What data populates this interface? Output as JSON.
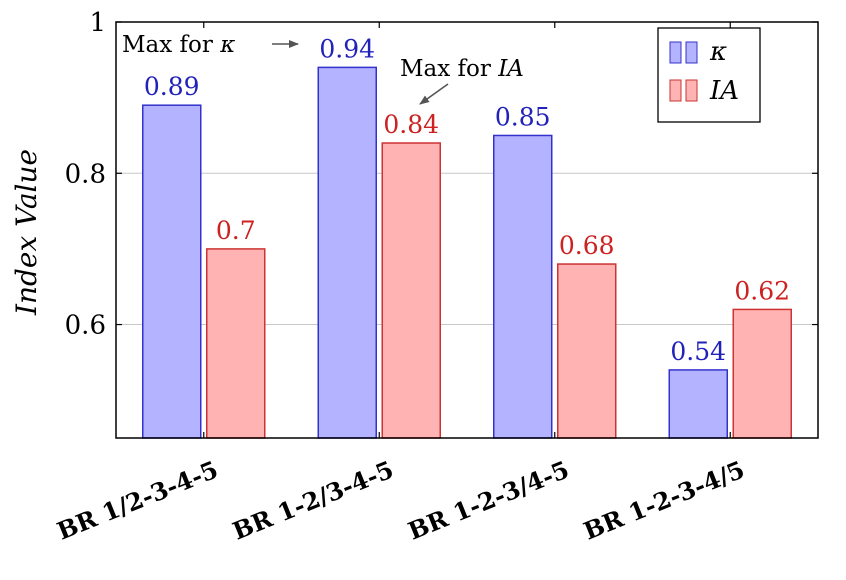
{
  "chart_data": {
    "type": "bar",
    "categories": [
      "BR 1/2-3-4-5",
      "BR 1-2/3-4-5",
      "BR 1-2-3/4-5",
      "BR 1-2-3-4/5"
    ],
    "series": [
      {
        "name": "κ",
        "values": [
          0.89,
          0.94,
          0.85,
          0.54
        ],
        "labels": [
          "0.89",
          "0.94",
          "0.85",
          "0.54"
        ],
        "color": "#b3b3ff",
        "stroke": "#3333cc",
        "label_color": "#2222bb"
      },
      {
        "name": "IA",
        "values": [
          0.7,
          0.84,
          0.68,
          0.62
        ],
        "labels": [
          "0.7",
          "0.84",
          "0.68",
          "0.62"
        ],
        "color": "#ffb3b3",
        "stroke": "#cc3333",
        "label_color": "#cc2222"
      }
    ],
    "ylabel": "Index Value",
    "ylim": [
      0.45,
      1.0
    ],
    "yticks": [
      0.6,
      0.8,
      1.0
    ],
    "ytick_labels": [
      "0.6",
      "0.8",
      "1"
    ],
    "grid": true,
    "legend_position": "top-right",
    "annotations": [
      {
        "prefix": "Max for ",
        "symbol": "κ",
        "target_series": 0,
        "target_category": 1
      },
      {
        "prefix": "Max for ",
        "symbol": "IA",
        "target_series": 1,
        "target_category": 1
      }
    ]
  }
}
